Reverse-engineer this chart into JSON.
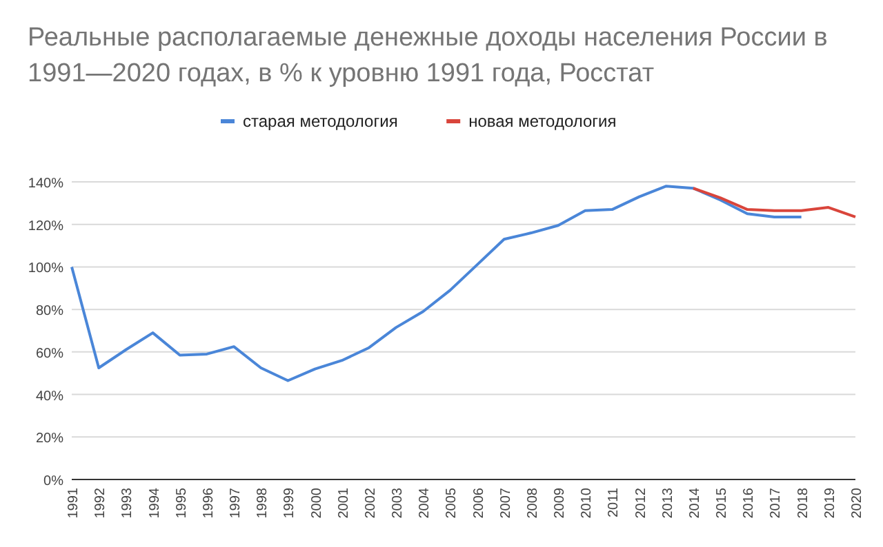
{
  "chart_data": {
    "type": "line",
    "title": "Реальные располагаемые денежные доходы населения России в 1991—2020 годах, в % к уровню 1991 года, Росстат",
    "categories": [
      "1991",
      "1992",
      "1993",
      "1994",
      "1995",
      "1996",
      "1997",
      "1998",
      "1999",
      "2000",
      "2001",
      "2002",
      "2003",
      "2004",
      "2005",
      "2006",
      "2007",
      "2008",
      "2009",
      "2010",
      "2011",
      "2012",
      "2013",
      "2014",
      "2015",
      "2016",
      "2017",
      "2018",
      "2019",
      "2020"
    ],
    "series": [
      {
        "name": "старая методология",
        "color": "#4a86d8",
        "values": [
          100,
          52.5,
          61,
          69,
          58.5,
          59,
          62.5,
          52.5,
          46.5,
          52,
          56,
          62,
          71.5,
          79,
          89,
          101,
          113,
          116,
          119.5,
          126.5,
          127,
          133,
          138,
          137,
          131.5,
          125,
          123.5,
          123.5,
          null,
          null
        ]
      },
      {
        "name": "новая методология",
        "color": "#d9453b",
        "values": [
          null,
          null,
          null,
          null,
          null,
          null,
          null,
          null,
          null,
          null,
          null,
          null,
          null,
          null,
          null,
          null,
          null,
          null,
          null,
          null,
          null,
          null,
          null,
          137,
          132.5,
          127,
          126.5,
          126.5,
          128,
          123.5
        ]
      }
    ],
    "ylim": [
      0,
      140
    ],
    "yticks": [
      {
        "value": 0,
        "label": "0%"
      },
      {
        "value": 20,
        "label": "20%"
      },
      {
        "value": 40,
        "label": "40%"
      },
      {
        "value": 60,
        "label": "60%"
      },
      {
        "value": 80,
        "label": "80%"
      },
      {
        "value": 100,
        "label": "100%"
      },
      {
        "value": 120,
        "label": "120%"
      },
      {
        "value": 140,
        "label": "140%"
      }
    ],
    "grid": "y",
    "legend": "top",
    "marker": "none",
    "line_style": "solid"
  }
}
